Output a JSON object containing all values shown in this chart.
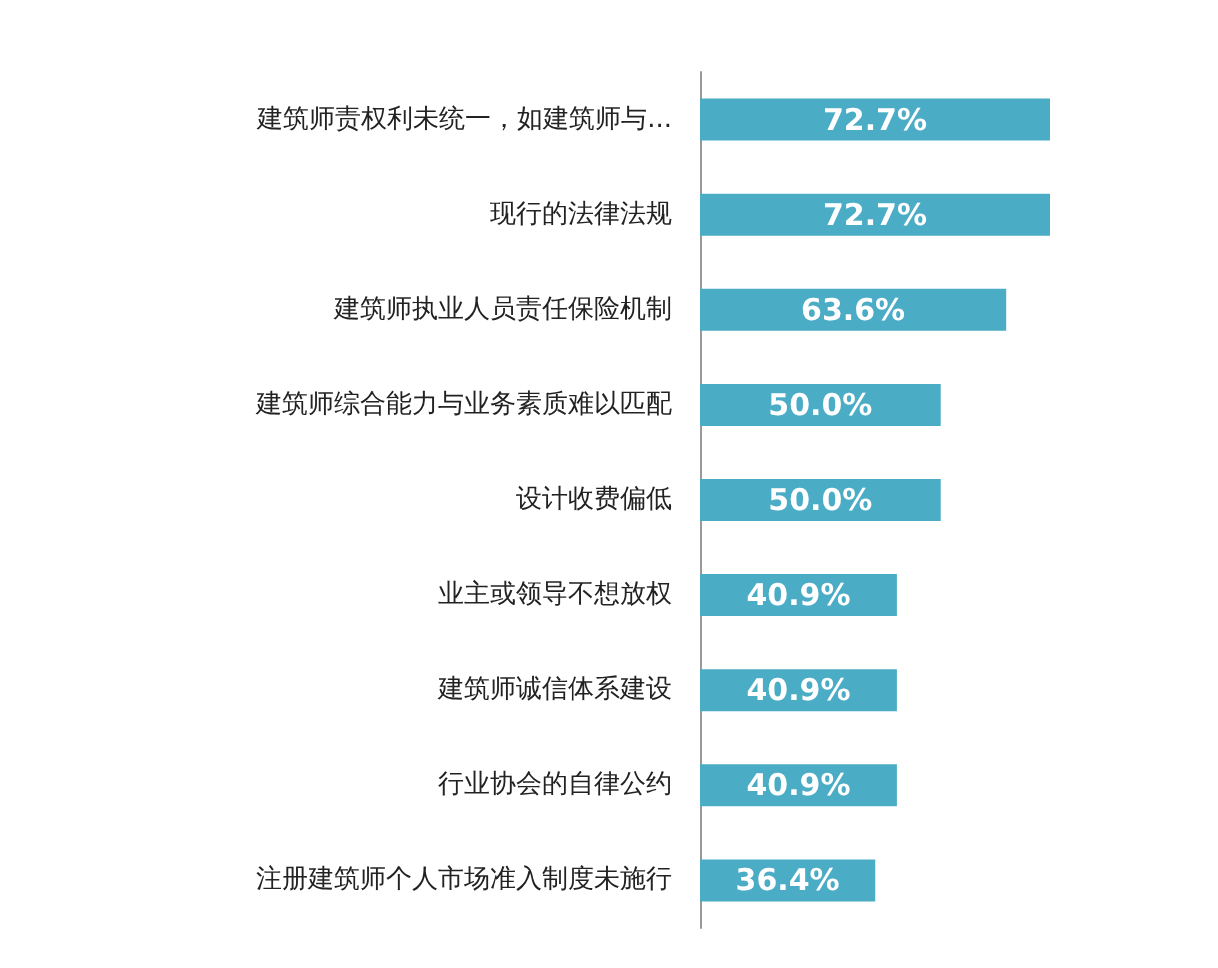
{
  "chart_data": {
    "type": "bar",
    "orientation": "horizontal",
    "categories": [
      "建筑师责权利未统一，如建筑师与...",
      "现行的法律法规",
      "建筑师执业人员责任保险机制",
      "建筑师综合能力与业务素质难以匹配",
      "设计收费偏低",
      "业主或领导不想放权",
      "建筑师诚信体系建设",
      "行业协会的自律公约",
      "注册建筑师个人市场准入制度未施行"
    ],
    "values": [
      72.7,
      72.7,
      63.6,
      50.0,
      50.0,
      40.9,
      40.9,
      40.9,
      36.4
    ],
    "value_labels": [
      "72.7%",
      "72.7%",
      "63.6%",
      "50.0%",
      "50.0%",
      "40.9%",
      "40.9%",
      "40.9%",
      "36.4%"
    ],
    "color": "#4bacc6",
    "tick_labels": "y",
    "grid": false
  }
}
